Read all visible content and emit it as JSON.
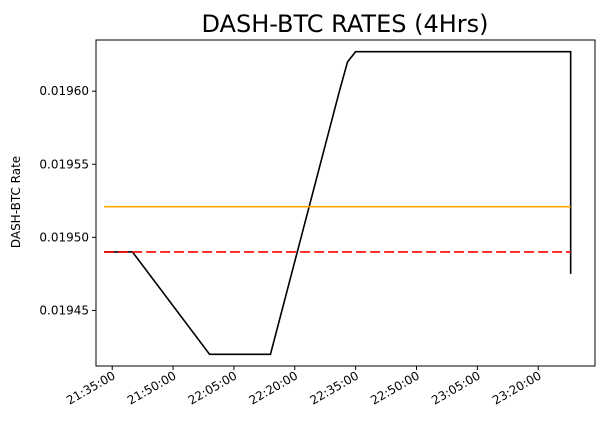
{
  "chart_data": {
    "type": "line",
    "title": "DASH-BTC RATES (4Hrs)",
    "xlabel": "",
    "ylabel": "DASH-BTC Rate",
    "x_ticks": [
      "21:35:00",
      "21:50:00",
      "22:05:00",
      "22:20:00",
      "22:35:00",
      "22:50:00",
      "23:05:00",
      "23:20:00"
    ],
    "y_ticks": [
      "0.01945",
      "0.01950",
      "0.01955",
      "0.01960"
    ],
    "xlim": [
      "21:31:00",
      "23:34:00"
    ],
    "ylim": [
      0.019412,
      0.019635
    ],
    "grid": false,
    "legend": false,
    "series": [
      {
        "color": "#000000",
        "style": "solid",
        "points": [
          [
            "21:33:00",
            0.01949
          ],
          [
            "21:40:00",
            0.01949
          ],
          [
            "21:59:00",
            0.01942
          ],
          [
            "22:14:00",
            0.01942
          ],
          [
            "22:31:00",
            0.0196
          ],
          [
            "22:33:00",
            0.01962
          ],
          [
            "22:35:00",
            0.019627
          ],
          [
            "23:28:00",
            0.019627
          ],
          [
            "23:28:00",
            0.019475
          ]
        ]
      },
      {
        "color": "#ffa500",
        "style": "solid",
        "points": [
          [
            "21:33:00",
            0.019521
          ],
          [
            "23:28:00",
            0.019521
          ]
        ]
      },
      {
        "color": "#ff0000",
        "style": "dashed",
        "points": [
          [
            "21:33:00",
            0.01949
          ],
          [
            "23:28:00",
            0.01949
          ]
        ]
      }
    ]
  }
}
